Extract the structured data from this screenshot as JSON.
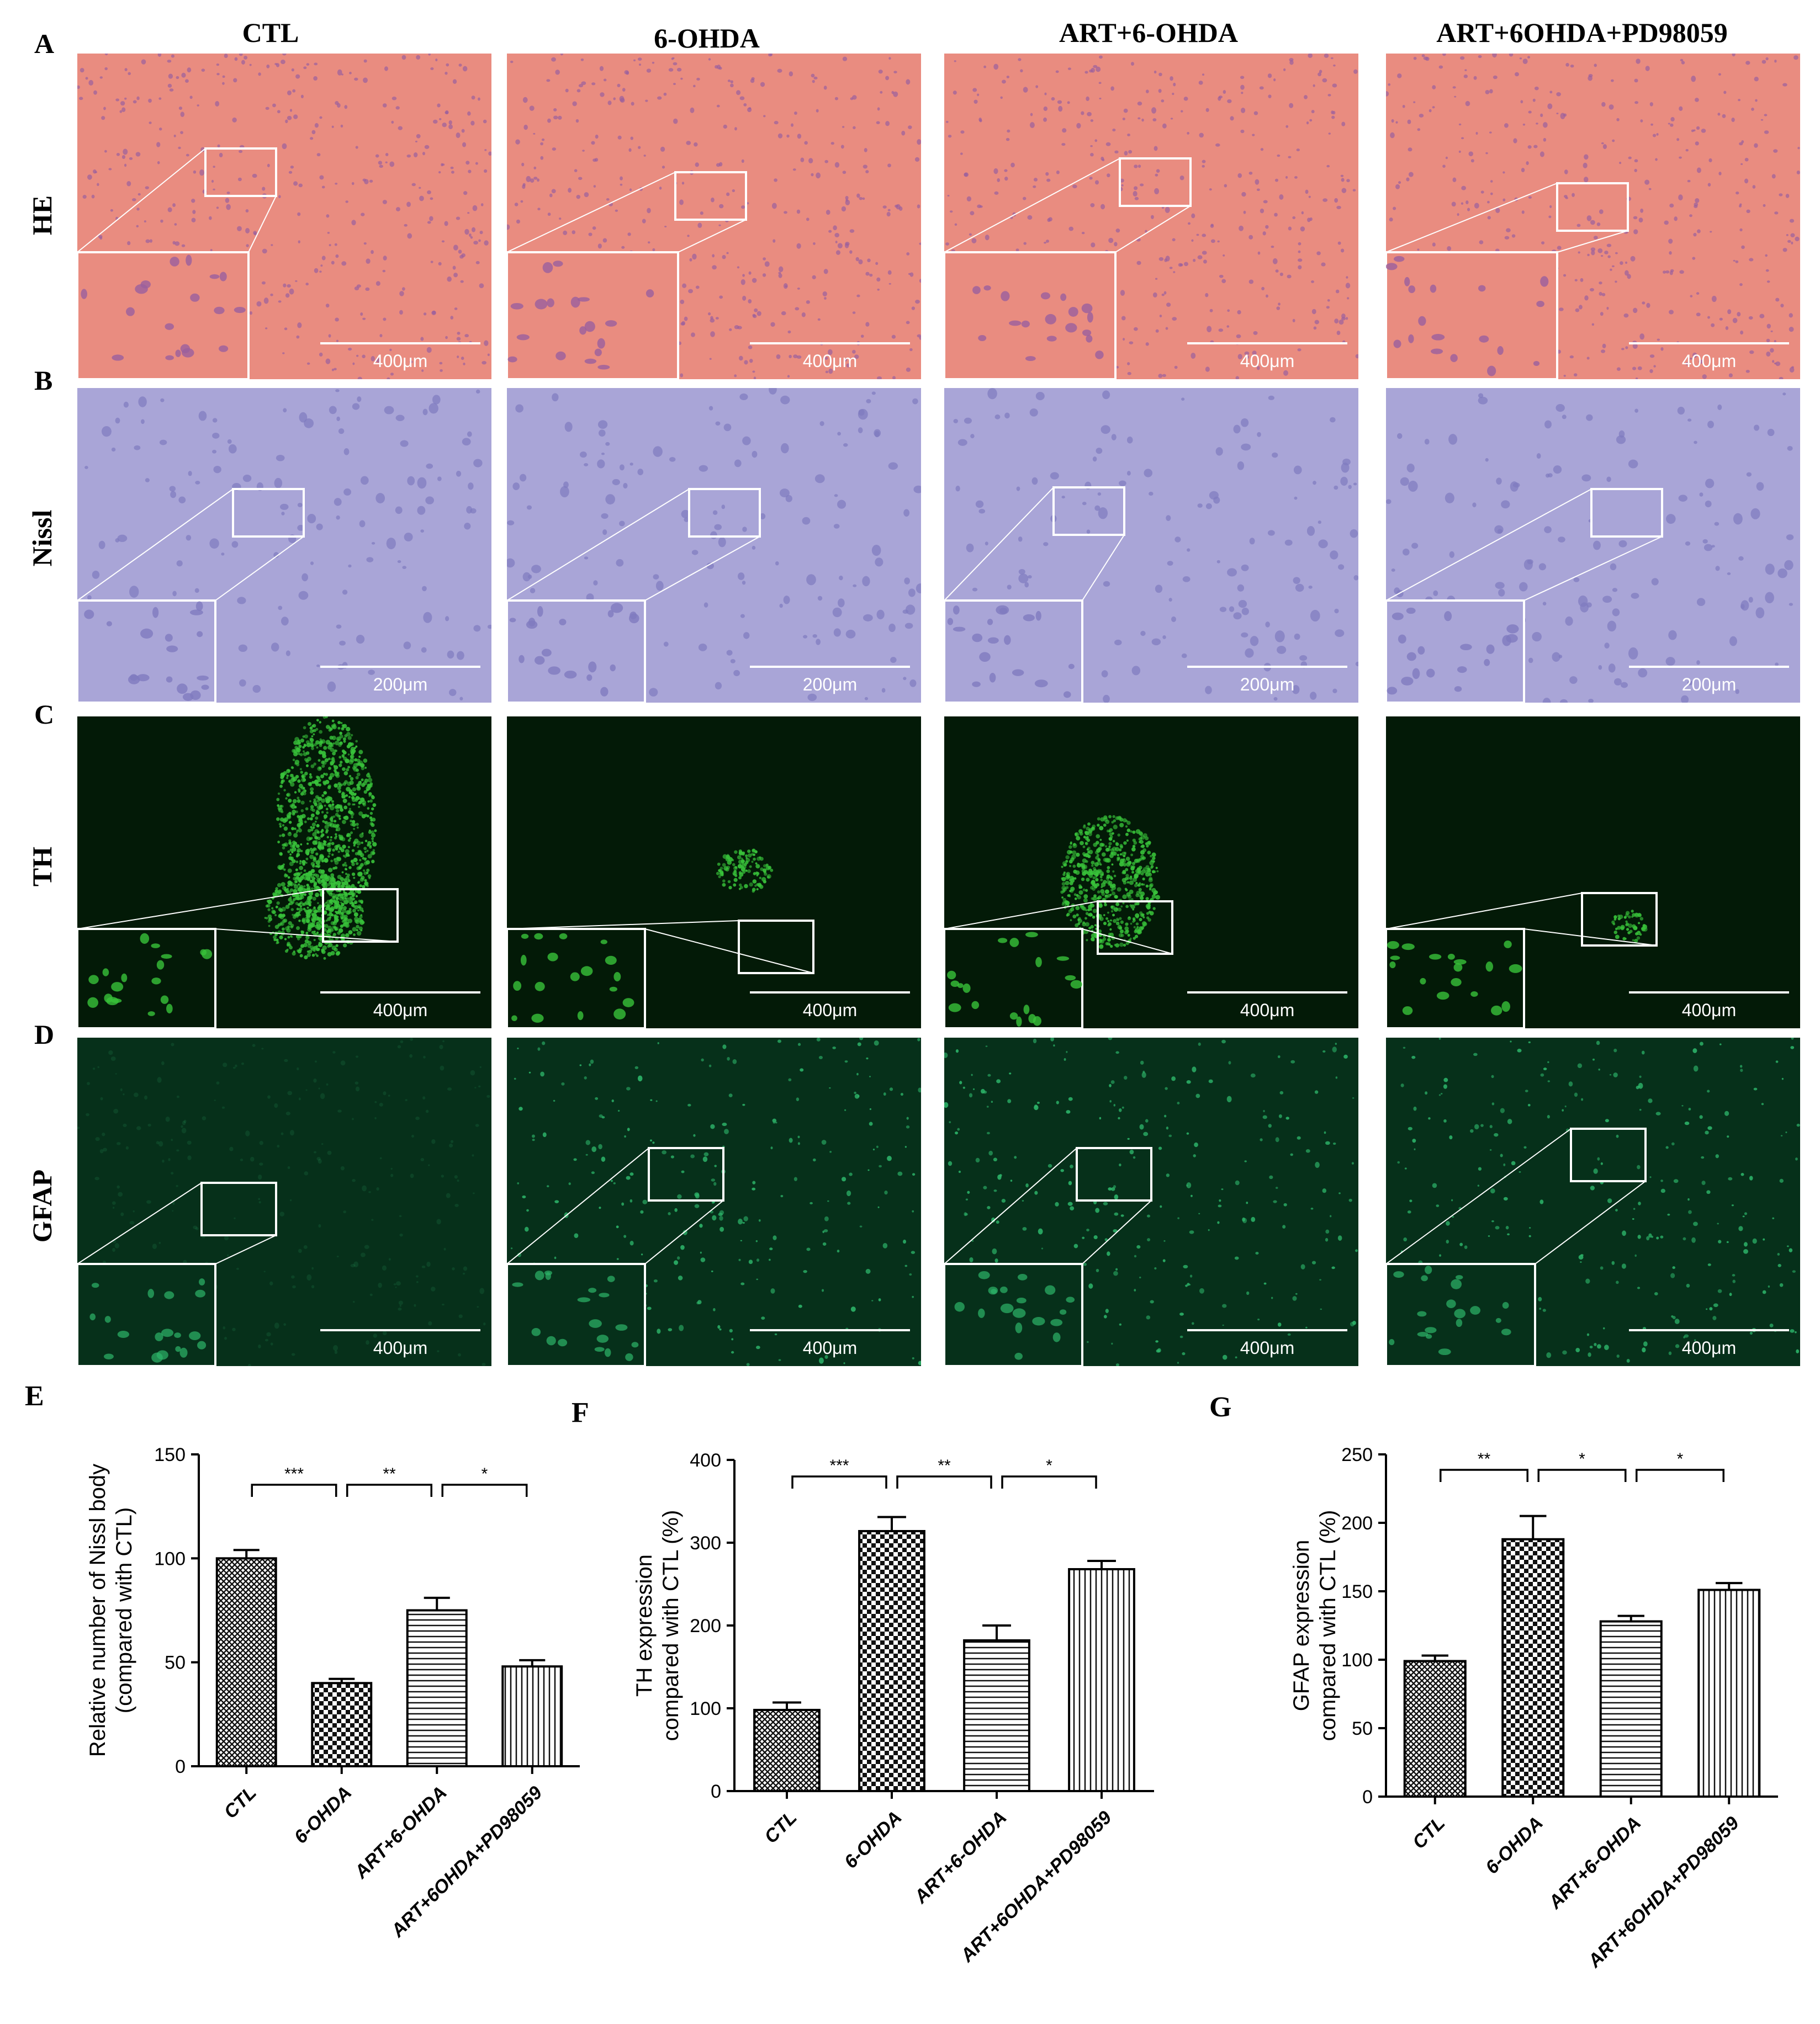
{
  "figure": {
    "columns": [
      "CTL",
      "6-OHDA",
      "ART+6-OHDA",
      "ART+6OHDA+PD98059"
    ],
    "rows": [
      {
        "letter": "A",
        "label": "HE",
        "scale_bar": "400μm",
        "base": "#e98c80",
        "cell": "#9a5f9e",
        "stain": "he"
      },
      {
        "letter": "B",
        "label": "Nissl",
        "scale_bar": "200μm",
        "base": "#a9a5d7",
        "cell": "#7f7bbf",
        "stain": "nissl"
      },
      {
        "letter": "C",
        "label": "TH",
        "scale_bar": "400μm",
        "base": "#031a07",
        "cell": "#38c23a",
        "stain": "th"
      },
      {
        "letter": "D",
        "label": "GFAP",
        "scale_bar": "400μm",
        "base": "#06301a",
        "cell": "#2db56a",
        "stain": "gfap"
      }
    ]
  },
  "chart_data": [
    {
      "panel": "E",
      "type": "bar",
      "categories": [
        "CTL",
        "6-OHDA",
        "ART+6-OHDA",
        "ART+6OHDA+PD98059"
      ],
      "values": [
        100,
        40,
        75,
        48
      ],
      "errors": [
        4,
        2,
        6,
        3
      ],
      "ylabel": "Relative number of Nissl body\n(compared with CTL)",
      "ylim": [
        0,
        150
      ],
      "yticks": [
        0,
        50,
        100,
        150
      ],
      "significance": [
        {
          "from": 0,
          "to": 1,
          "label": "***"
        },
        {
          "from": 1,
          "to": 2,
          "label": "**"
        },
        {
          "from": 2,
          "to": 3,
          "label": "*"
        }
      ]
    },
    {
      "panel": "F",
      "type": "bar",
      "categories": [
        "CTL",
        "6-OHDA",
        "ART+6-OHDA",
        "ART+6OHDA+PD98059"
      ],
      "values": [
        98,
        314,
        182,
        268
      ],
      "errors": [
        9,
        17,
        18,
        10
      ],
      "ylabel": "TH expression\ncompared with CTL (%)",
      "ylim": [
        0,
        400
      ],
      "yticks": [
        0,
        100,
        200,
        300,
        400
      ],
      "significance": [
        {
          "from": 0,
          "to": 1,
          "label": "***"
        },
        {
          "from": 1,
          "to": 2,
          "label": "**"
        },
        {
          "from": 2,
          "to": 3,
          "label": "*"
        }
      ]
    },
    {
      "panel": "G",
      "type": "bar",
      "categories": [
        "CTL",
        "6-OHDA",
        "ART+6-OHDA",
        "ART+6OHDA+PD98059"
      ],
      "values": [
        99,
        188,
        128,
        151
      ],
      "errors": [
        4,
        17,
        4,
        5
      ],
      "ylabel": "GFAP expression\ncompared with CTL (%)",
      "ylim": [
        0,
        250
      ],
      "yticks": [
        0,
        50,
        100,
        150,
        200,
        250
      ],
      "significance": [
        {
          "from": 0,
          "to": 1,
          "label": "**"
        },
        {
          "from": 1,
          "to": 2,
          "label": "*"
        },
        {
          "from": 2,
          "to": 3,
          "label": "*"
        }
      ]
    }
  ],
  "patterns": [
    "cross",
    "checker",
    "hlines",
    "vlines"
  ]
}
